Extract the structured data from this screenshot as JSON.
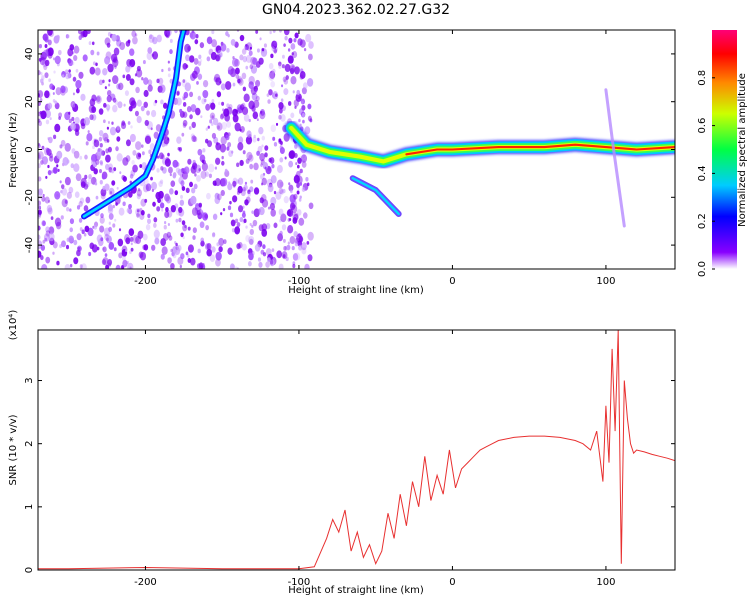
{
  "title": "GN04.2023.362.02.27.G32",
  "chart_data": [
    {
      "type": "heatmap",
      "xlabel": "Height of straight line (km)",
      "ylabel": "Frequency (Hz)",
      "xlim": [
        -270,
        145
      ],
      "ylim": [
        -50,
        50
      ],
      "xticks": [
        -200,
        -100,
        0,
        100
      ],
      "yticks": [
        -40,
        -20,
        0,
        20,
        40
      ],
      "colorbar": {
        "label": "Normalized spectral amplitude",
        "range": [
          0,
          1
        ],
        "ticks": [
          0.0,
          0.2,
          0.4,
          0.6,
          0.8
        ],
        "tick_labels": [
          "0.0",
          "0.2",
          "0.4",
          "0.6",
          "0.8"
        ]
      },
      "features": {
        "noise_region_x": [
          -270,
          -100
        ],
        "dispersion_curve": [
          [
            -240,
            -28
          ],
          [
            -225,
            -22
          ],
          [
            -210,
            -16
          ],
          [
            -200,
            -11
          ],
          [
            -195,
            -4
          ],
          [
            -190,
            5
          ],
          [
            -185,
            15
          ],
          [
            -180,
            30
          ],
          [
            -177,
            45
          ],
          [
            -175,
            50
          ]
        ],
        "main_trace": [
          [
            -105,
            9
          ],
          [
            -95,
            2
          ],
          [
            -80,
            -1
          ],
          [
            -60,
            -3
          ],
          [
            -45,
            -5
          ],
          [
            -30,
            -2
          ],
          [
            -10,
            0
          ],
          [
            0,
            0
          ],
          [
            30,
            1
          ],
          [
            60,
            1
          ],
          [
            80,
            2
          ],
          [
            100,
            1
          ],
          [
            120,
            0
          ],
          [
            145,
            1
          ]
        ],
        "secondary_branch": [
          [
            -65,
            -12
          ],
          [
            -50,
            -17
          ],
          [
            -35,
            -27
          ]
        ],
        "vertical_streak": [
          [
            100,
            25
          ],
          [
            105,
            0
          ],
          [
            112,
            -32
          ]
        ]
      }
    },
    {
      "type": "line",
      "xlabel": "Height of straight line (km)",
      "ylabel": "SNR (10 * v/v)",
      "scale_label": "(x10⁴)",
      "xlim": [
        -270,
        145
      ],
      "ylim": [
        0,
        3.8
      ],
      "xticks": [
        -200,
        -100,
        0,
        100
      ],
      "yticks": [
        0,
        1,
        2,
        3
      ],
      "color": "#e83030",
      "series": [
        {
          "x": [
            -270,
            -250,
            -200,
            -150,
            -100,
            -90,
            -82,
            -78,
            -74,
            -70,
            -66,
            -62,
            -58,
            -54,
            -50,
            -46,
            -42,
            -38,
            -34,
            -30,
            -26,
            -22,
            -18,
            -14,
            -10,
            -6,
            -2,
            2,
            6,
            10,
            14,
            18,
            22,
            26,
            30,
            40,
            50,
            60,
            70,
            80,
            85,
            90,
            94,
            98,
            100,
            102,
            104,
            106,
            108,
            110,
            112,
            114,
            116,
            118,
            120,
            125,
            130,
            135,
            140,
            145
          ],
          "y": [
            0.02,
            0.02,
            0.04,
            0.02,
            0.02,
            0.05,
            0.5,
            0.8,
            0.6,
            0.95,
            0.3,
            0.6,
            0.2,
            0.4,
            0.1,
            0.3,
            0.9,
            0.5,
            1.2,
            0.7,
            1.4,
            1.0,
            1.8,
            1.1,
            1.5,
            1.2,
            1.9,
            1.3,
            1.6,
            1.7,
            1.8,
            1.9,
            1.95,
            2.0,
            2.05,
            2.1,
            2.12,
            2.12,
            2.1,
            2.05,
            2.0,
            1.9,
            2.2,
            1.4,
            2.6,
            1.7,
            3.5,
            2.2,
            3.8,
            0.1,
            3.0,
            2.4,
            2.0,
            1.85,
            1.9,
            1.87,
            1.83,
            1.8,
            1.77,
            1.73
          ]
        }
      ]
    }
  ]
}
